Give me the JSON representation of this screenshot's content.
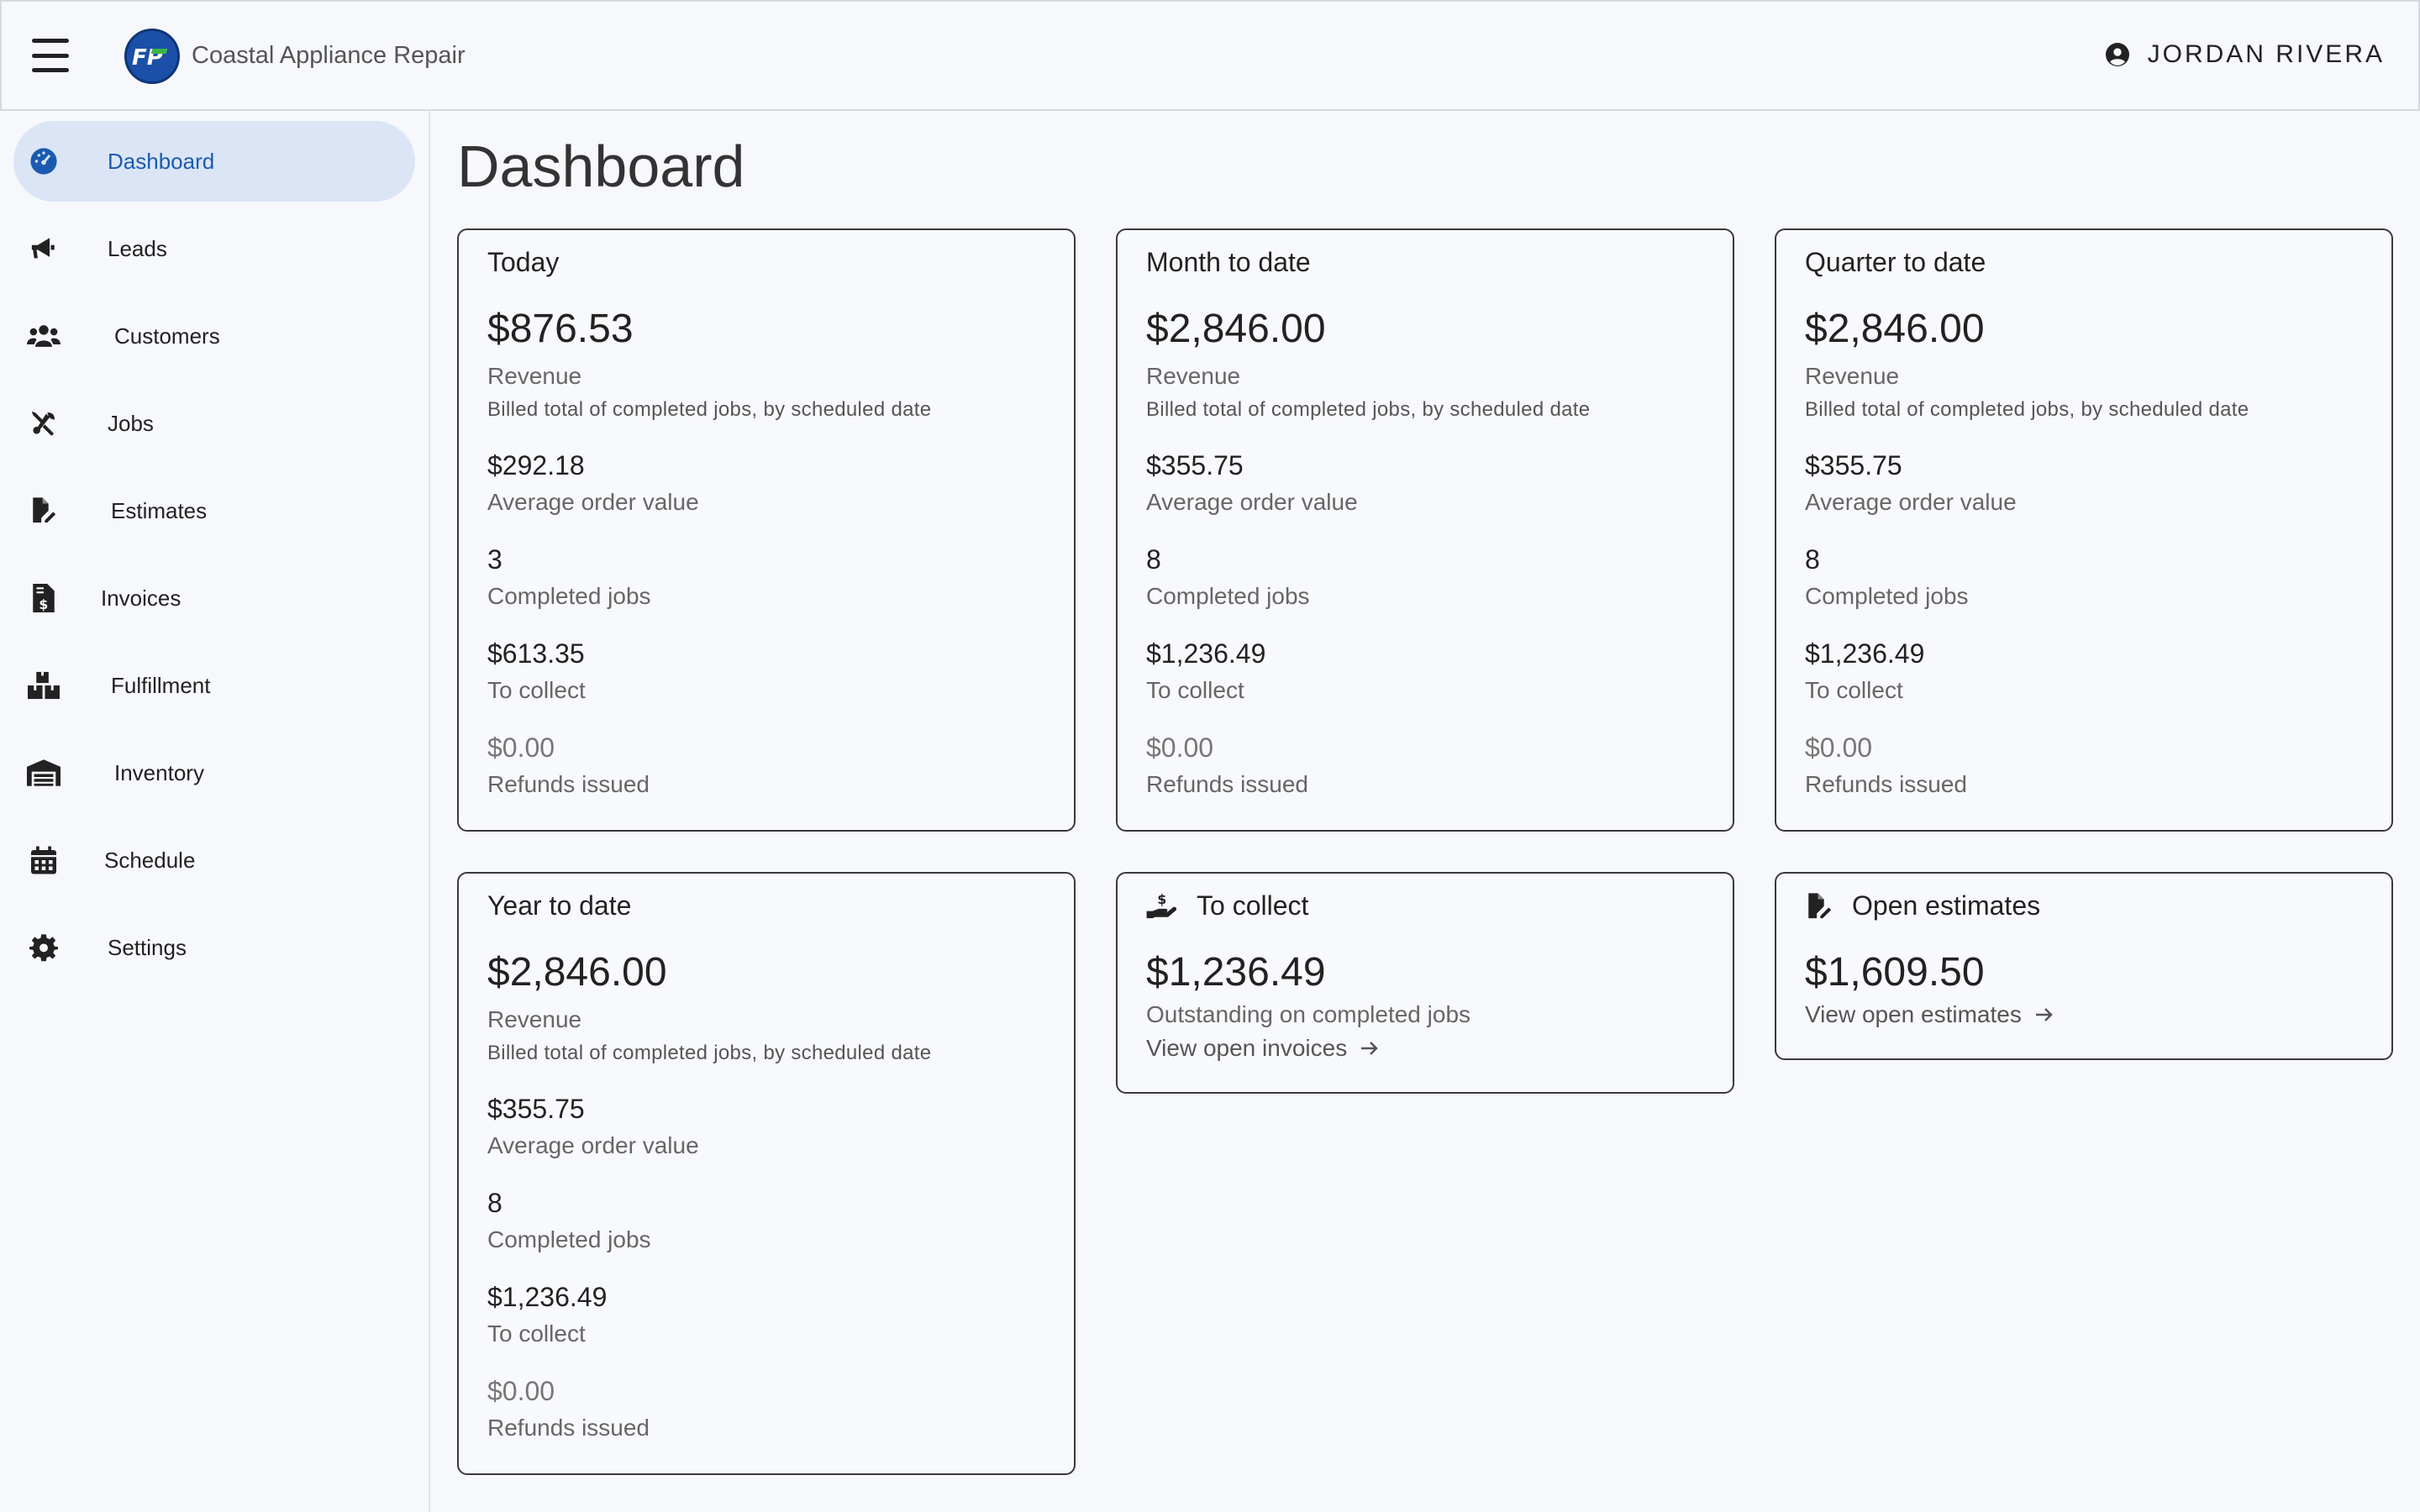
{
  "header": {
    "company_name": "Coastal Appliance Repair",
    "logo_text": "FP",
    "user_name": "JORDAN RIVERA"
  },
  "sidebar": {
    "items": [
      {
        "label": "Dashboard",
        "icon": "dashboard-gauge-icon",
        "active": true
      },
      {
        "label": "Leads",
        "icon": "megaphone-icon"
      },
      {
        "label": "Customers",
        "icon": "users-icon"
      },
      {
        "label": "Jobs",
        "icon": "tools-icon"
      },
      {
        "label": "Estimates",
        "icon": "file-edit-icon"
      },
      {
        "label": "Invoices",
        "icon": "invoice-dollar-icon"
      },
      {
        "label": "Fulfillment",
        "icon": "boxes-icon"
      },
      {
        "label": "Inventory",
        "icon": "warehouse-icon"
      },
      {
        "label": "Schedule",
        "icon": "calendar-icon"
      },
      {
        "label": "Settings",
        "icon": "gear-icon"
      }
    ]
  },
  "main": {
    "title": "Dashboard",
    "period_cards": [
      {
        "title": "Today",
        "revenue": "$876.53",
        "revenue_label": "Revenue",
        "revenue_note": "Billed total of completed jobs, by scheduled date",
        "aov": "$292.18",
        "aov_label": "Average order value",
        "jobs": "3",
        "jobs_label": "Completed jobs",
        "collect": "$613.35",
        "collect_label": "To collect",
        "refunds": "$0.00",
        "refunds_label": "Refunds issued"
      },
      {
        "title": "Month to date",
        "revenue": "$2,846.00",
        "revenue_label": "Revenue",
        "revenue_note": "Billed total of completed jobs, by scheduled date",
        "aov": "$355.75",
        "aov_label": "Average order value",
        "jobs": "8",
        "jobs_label": "Completed jobs",
        "collect": "$1,236.49",
        "collect_label": "To collect",
        "refunds": "$0.00",
        "refunds_label": "Refunds issued"
      },
      {
        "title": "Quarter to date",
        "revenue": "$2,846.00",
        "revenue_label": "Revenue",
        "revenue_note": "Billed total of completed jobs, by scheduled date",
        "aov": "$355.75",
        "aov_label": "Average order value",
        "jobs": "8",
        "jobs_label": "Completed jobs",
        "collect": "$1,236.49",
        "collect_label": "To collect",
        "refunds": "$0.00",
        "refunds_label": "Refunds issued"
      },
      {
        "title": "Year to date",
        "revenue": "$2,846.00",
        "revenue_label": "Revenue",
        "revenue_note": "Billed total of completed jobs, by scheduled date",
        "aov": "$355.75",
        "aov_label": "Average order value",
        "jobs": "8",
        "jobs_label": "Completed jobs",
        "collect": "$1,236.49",
        "collect_label": "To collect",
        "refunds": "$0.00",
        "refunds_label": "Refunds issued"
      }
    ],
    "to_collect_card": {
      "title": "To collect",
      "icon": "hand-holding-dollar-icon",
      "amount": "$1,236.49",
      "description": "Outstanding on completed jobs",
      "link": "View open invoices"
    },
    "open_estimates_card": {
      "title": "Open estimates",
      "icon": "file-edit-icon",
      "amount": "$1,609.50",
      "link": "View open estimates"
    }
  }
}
